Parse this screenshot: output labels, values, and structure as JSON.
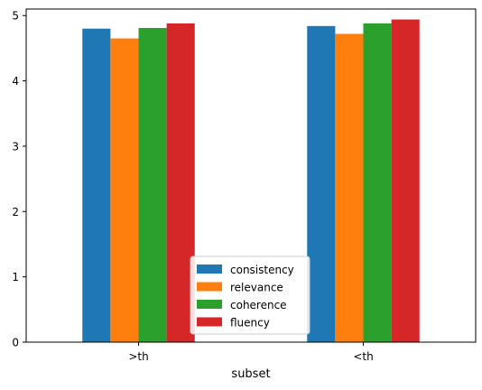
{
  "chart_data": {
    "type": "bar",
    "xlabel": "subset",
    "ylabel": "",
    "categories": [
      ">th",
      "<th"
    ],
    "series": [
      {
        "name": "consistency",
        "color": "#1f77b4",
        "values": [
          4.8,
          4.84
        ]
      },
      {
        "name": "relevance",
        "color": "#ff7f0e",
        "values": [
          4.65,
          4.72
        ]
      },
      {
        "name": "coherence",
        "color": "#2ca02c",
        "values": [
          4.81,
          4.88
        ]
      },
      {
        "name": "fluency",
        "color": "#d62728",
        "values": [
          4.88,
          4.94
        ]
      }
    ],
    "ylim": [
      0,
      5.1
    ],
    "yticks": [
      0,
      1,
      2,
      3,
      4,
      5
    ],
    "ytick_labels": [
      "0",
      "1",
      "2",
      "3",
      "4",
      "5"
    ],
    "grid": false,
    "legend_position": "bottom-center"
  }
}
